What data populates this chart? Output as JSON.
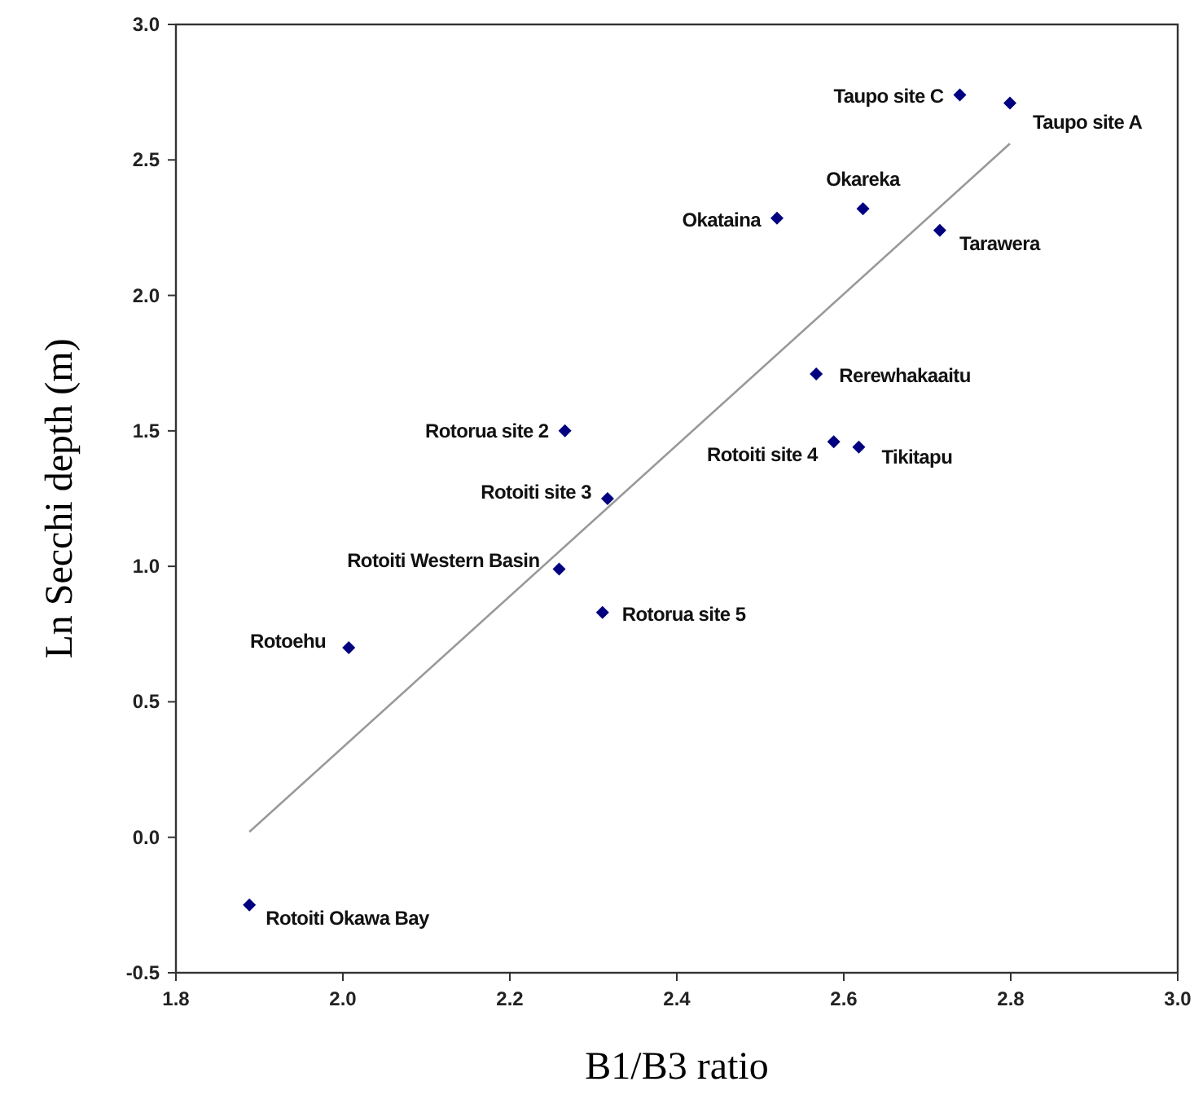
{
  "chart_data": {
    "type": "scatter",
    "xlabel": "B1/B3 ratio",
    "ylabel": "Ln Secchi depth (m)",
    "xlim": [
      1.8,
      3.0
    ],
    "ylim": [
      -0.5,
      3.0
    ],
    "xticks": [
      {
        "value": 1.8,
        "label": "1.8"
      },
      {
        "value": 2.0,
        "label": "2.0"
      },
      {
        "value": 2.2,
        "label": "2.2"
      },
      {
        "value": 2.4,
        "label": "2.4"
      },
      {
        "value": 2.6,
        "label": "2.6"
      },
      {
        "value": 2.8,
        "label": "2.8"
      },
      {
        "value": 3.0,
        "label": "3.0"
      }
    ],
    "yticks": [
      {
        "value": -0.5,
        "label": "-0.5"
      },
      {
        "value": 0,
        "label": "0.0"
      },
      {
        "value": 0.5,
        "label": "0.5"
      },
      {
        "value": 1,
        "label": "1.0"
      },
      {
        "value": 1.5,
        "label": "1.5"
      },
      {
        "value": 2,
        "label": "2.0"
      },
      {
        "value": 2.5,
        "label": "2.5"
      },
      {
        "value": 3,
        "label": "3.0"
      }
    ],
    "marker": "diamond",
    "grid": false,
    "series": [
      {
        "color": "#000080",
        "x": [
          2.739,
          2.799,
          2.623,
          2.52,
          2.715,
          2.567,
          2.266,
          2.588,
          2.618,
          2.317,
          2.259,
          2.311,
          2.007,
          1.888
        ],
        "values": [
          2.74,
          2.71,
          2.32,
          2.285,
          2.24,
          1.71,
          1.5,
          1.46,
          1.44,
          1.25,
          0.99,
          0.83,
          0.7,
          -0.25
        ]
      },
      {
        "type": "line",
        "color": "#999999",
        "x": [
          1.888,
          2.799
        ],
        "values": [
          0.02,
          2.56
        ],
        "marker": "none"
      }
    ],
    "annotations": [
      {
        "text": "Taupo site C",
        "x": 2.739,
        "y": 2.74
      },
      {
        "text": "Taupo site A",
        "x": 2.799,
        "y": 2.71
      },
      {
        "text": "Okareka",
        "x": 2.623,
        "y": 2.32
      },
      {
        "text": "Okataina",
        "x": 2.52,
        "y": 2.285
      },
      {
        "text": "Tarawera",
        "x": 2.715,
        "y": 2.24
      },
      {
        "text": "Rerewhakaaitu",
        "x": 2.567,
        "y": 1.71
      },
      {
        "text": "Rotorua site 2",
        "x": 2.266,
        "y": 1.5
      },
      {
        "text": "Rotoiti site 4",
        "x": 2.588,
        "y": 1.46
      },
      {
        "text": "Tikitapu",
        "x": 2.618,
        "y": 1.44
      },
      {
        "text": "Rotoiti site 3",
        "x": 2.317,
        "y": 1.25
      },
      {
        "text": "Rotoiti Western Basin",
        "x": 2.259,
        "y": 0.99
      },
      {
        "text": "Rotorua site 5",
        "x": 2.311,
        "y": 0.83
      },
      {
        "text": "Rotoehu",
        "x": 2.007,
        "y": 0.7
      },
      {
        "text": "Rotoiti Okawa Bay",
        "x": 1.888,
        "y": -0.25
      }
    ]
  }
}
